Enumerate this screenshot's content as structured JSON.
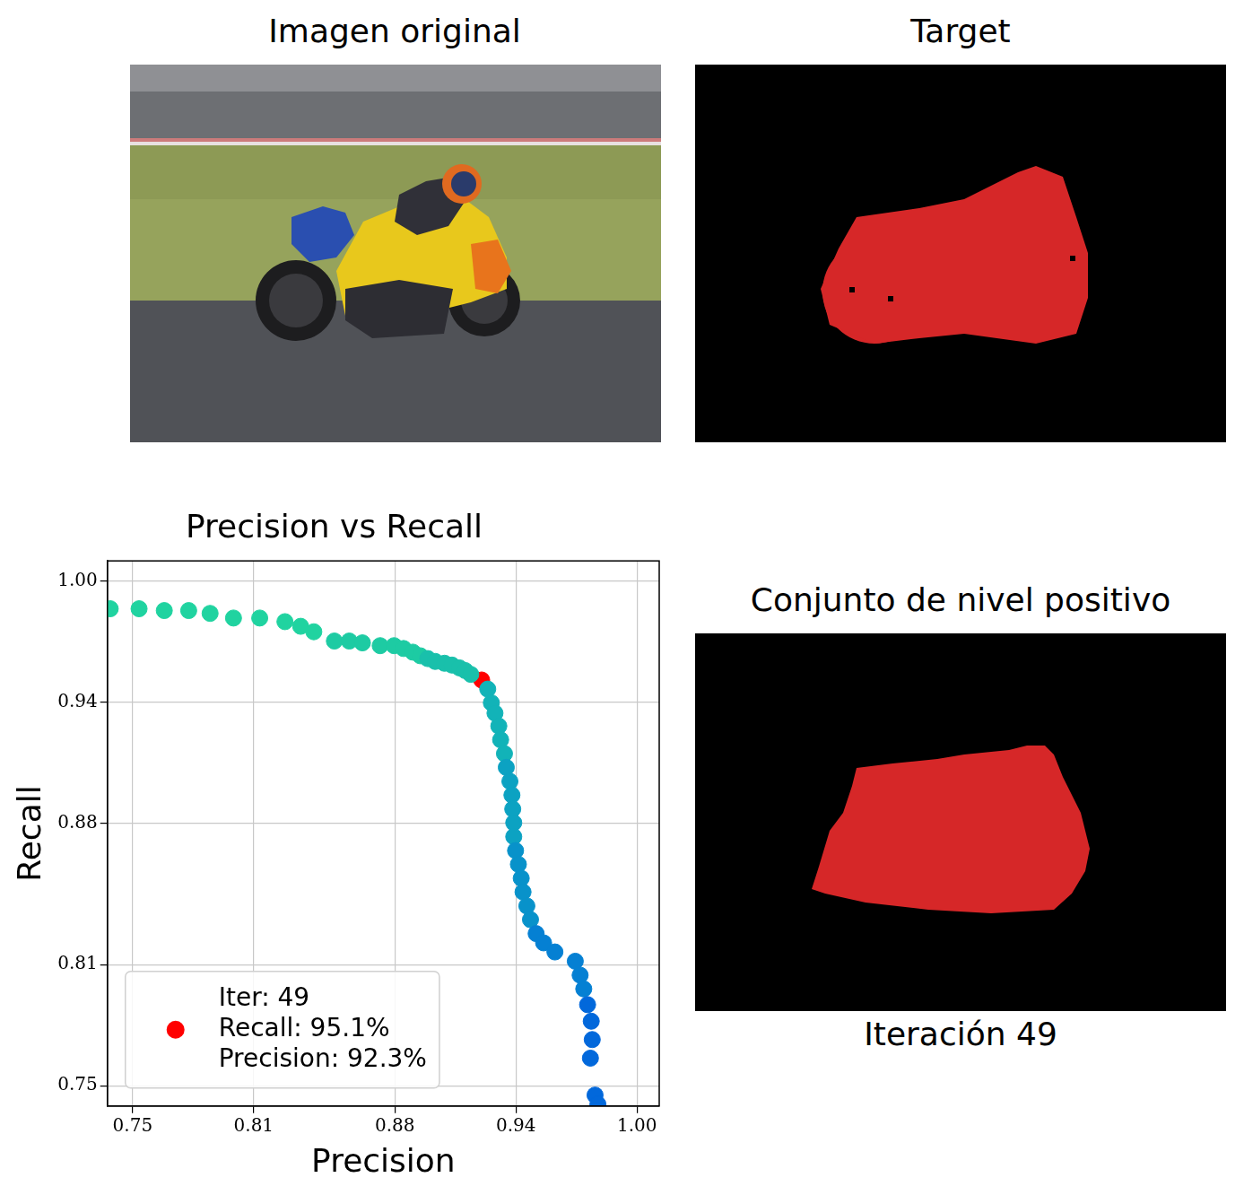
{
  "chart_data": {
    "type": "scatter",
    "title": "Precision vs Recall",
    "x_label": "Precision",
    "y_label": "Recall",
    "xlim": [
      0.7375,
      1.011
    ],
    "ylim": [
      0.74,
      1.01
    ],
    "xticks": [
      0.75,
      0.81,
      0.88,
      0.94,
      {
        "value": 1,
        "label": "1.00"
      }
    ],
    "yticks": [
      0.75,
      0.81,
      0.88,
      0.94,
      {
        "value": 1,
        "label": "1.00"
      }
    ],
    "grid": true,
    "legend": "lower left",
    "series": [
      {
        "marker": "circle",
        "x": [
          0.7389,
          0.7532,
          0.7657,
          0.7778,
          0.7884,
          0.8,
          0.813,
          0.8255,
          0.8333,
          0.8398,
          0.85,
          0.8574,
          0.8639,
          0.8727,
          0.8796,
          0.8843,
          0.8889,
          0.8926,
          0.8963,
          0.9,
          0.9046,
          0.9083,
          0.912,
          0.9148,
          0.9176,
          0.926,
          0.9278,
          0.9296,
          0.9315,
          0.9324,
          0.9343,
          0.9352,
          0.937,
          0.938,
          0.9384,
          0.9389,
          0.9389,
          0.9398,
          0.9412,
          0.9426,
          0.9435,
          0.9454,
          0.9472,
          0.95,
          0.9537,
          0.9593,
          0.9694,
          0.9718,
          0.9736,
          0.9755,
          0.9773,
          0.9778,
          0.9769,
          0.9792,
          0.9806
        ],
        "values": [
          0.9863,
          0.9863,
          0.9854,
          0.9854,
          0.984,
          0.9817,
          0.9817,
          0.9799,
          0.9776,
          0.9749,
          0.9703,
          0.9703,
          0.9694,
          0.968,
          0.968,
          0.9666,
          0.9648,
          0.963,
          0.9616,
          0.9602,
          0.9593,
          0.9584,
          0.957,
          0.9557,
          0.9538,
          0.9465,
          0.9397,
          0.9346,
          0.9282,
          0.9214,
          0.9145,
          0.9077,
          0.9008,
          0.894,
          0.8871,
          0.8803,
          0.8734,
          0.8665,
          0.8597,
          0.8528,
          0.846,
          0.8391,
          0.8323,
          0.8254,
          0.8208,
          0.8163,
          0.8117,
          0.8048,
          0.798,
          0.7902,
          0.782,
          0.7729,
          0.7637,
          0.7454,
          0.7409
        ],
        "colors": [
          "#20d3a0",
          "#20d3a0",
          "#20d3a0",
          "#20d3a0",
          "#20d3a0",
          "#20d3a0",
          "#20d3a0",
          "#20d3a0",
          "#20d3a0",
          "#20d3a0",
          "#1dcba3",
          "#1dcba3",
          "#1dcba3",
          "#1dcba3",
          "#1dcba3",
          "#1dcba3",
          "#1dcba3",
          "#1dcba3",
          "#19c0ab",
          "#19c0ab",
          "#19c0ab",
          "#19c0ab",
          "#19c0ab",
          "#19c0ab",
          "#19c0ab",
          "#12b3b8",
          "#12b3b8",
          "#12b3b8",
          "#12b3b8",
          "#12b3b8",
          "#12b3b8",
          "#0ca2c2",
          "#0ca2c2",
          "#0ca2c2",
          "#0ca2c2",
          "#0ca2c2",
          "#0ca2c2",
          "#0892ca",
          "#0892ca",
          "#0892ca",
          "#0892ca",
          "#0892ca",
          "#0892ca",
          "#0580d3",
          "#0580d3",
          "#0580d3",
          "#0580d3",
          "#0580d3",
          "#0580d3",
          "#0268db",
          "#0268db",
          "#0268db",
          "#0268db",
          "#0268db",
          "#0268db"
        ]
      },
      {
        "name": "Iter: 49\nRecall: 95.1%\nPrecision: 92.3%",
        "marker": "circle",
        "color": "#ff0000",
        "x": [
          0.923
        ],
        "values": [
          0.951
        ]
      }
    ]
  },
  "panels": [
    {
      "title": "Imagen original"
    },
    {
      "title": "Target"
    },
    {
      "title": "Conjunto de nivel positivo",
      "caption": "Iteración 49"
    }
  ]
}
